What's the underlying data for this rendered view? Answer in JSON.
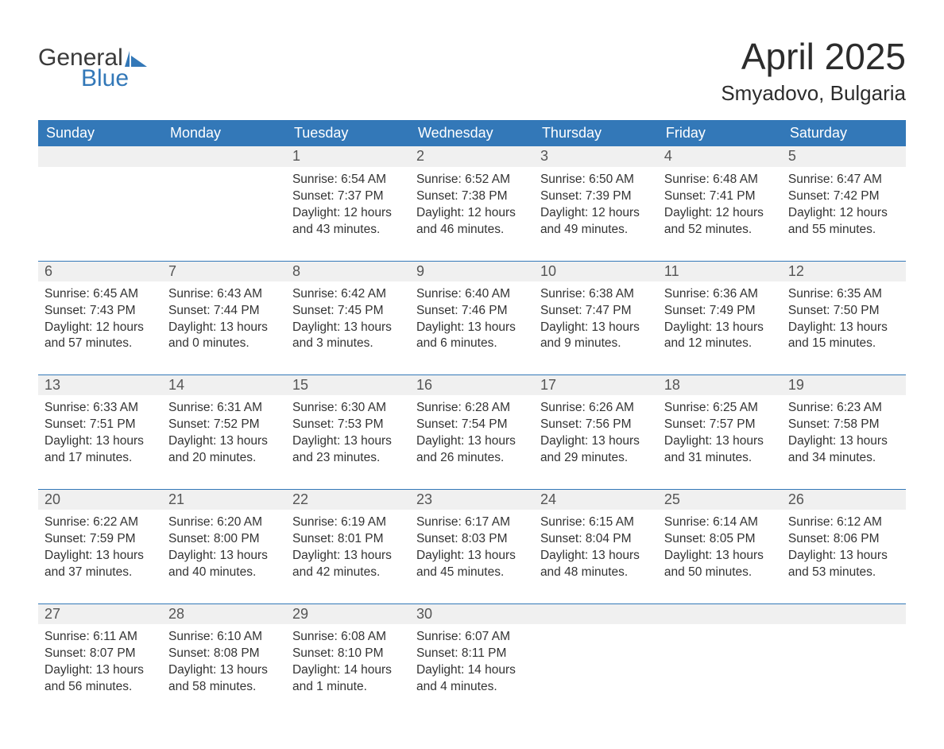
{
  "logo": {
    "word1": "General",
    "word2": "Blue",
    "flag_color": "#3378b8"
  },
  "title": "April 2025",
  "location": "Smyadovo, Bulgaria",
  "day_headers": [
    "Sunday",
    "Monday",
    "Tuesday",
    "Wednesday",
    "Thursday",
    "Friday",
    "Saturday"
  ],
  "colors": {
    "header_bg": "#3378b8",
    "header_text": "#ffffff",
    "strip_bg": "#f0f0f0",
    "body_text": "#333333",
    "daynum_text": "#555555",
    "page_bg": "#ffffff"
  },
  "weeks": [
    [
      null,
      null,
      {
        "n": "1",
        "sunrise": "Sunrise: 6:54 AM",
        "sunset": "Sunset: 7:37 PM",
        "d1": "Daylight: 12 hours",
        "d2": "and 43 minutes."
      },
      {
        "n": "2",
        "sunrise": "Sunrise: 6:52 AM",
        "sunset": "Sunset: 7:38 PM",
        "d1": "Daylight: 12 hours",
        "d2": "and 46 minutes."
      },
      {
        "n": "3",
        "sunrise": "Sunrise: 6:50 AM",
        "sunset": "Sunset: 7:39 PM",
        "d1": "Daylight: 12 hours",
        "d2": "and 49 minutes."
      },
      {
        "n": "4",
        "sunrise": "Sunrise: 6:48 AM",
        "sunset": "Sunset: 7:41 PM",
        "d1": "Daylight: 12 hours",
        "d2": "and 52 minutes."
      },
      {
        "n": "5",
        "sunrise": "Sunrise: 6:47 AM",
        "sunset": "Sunset: 7:42 PM",
        "d1": "Daylight: 12 hours",
        "d2": "and 55 minutes."
      }
    ],
    [
      {
        "n": "6",
        "sunrise": "Sunrise: 6:45 AM",
        "sunset": "Sunset: 7:43 PM",
        "d1": "Daylight: 12 hours",
        "d2": "and 57 minutes."
      },
      {
        "n": "7",
        "sunrise": "Sunrise: 6:43 AM",
        "sunset": "Sunset: 7:44 PM",
        "d1": "Daylight: 13 hours",
        "d2": "and 0 minutes."
      },
      {
        "n": "8",
        "sunrise": "Sunrise: 6:42 AM",
        "sunset": "Sunset: 7:45 PM",
        "d1": "Daylight: 13 hours",
        "d2": "and 3 minutes."
      },
      {
        "n": "9",
        "sunrise": "Sunrise: 6:40 AM",
        "sunset": "Sunset: 7:46 PM",
        "d1": "Daylight: 13 hours",
        "d2": "and 6 minutes."
      },
      {
        "n": "10",
        "sunrise": "Sunrise: 6:38 AM",
        "sunset": "Sunset: 7:47 PM",
        "d1": "Daylight: 13 hours",
        "d2": "and 9 minutes."
      },
      {
        "n": "11",
        "sunrise": "Sunrise: 6:36 AM",
        "sunset": "Sunset: 7:49 PM",
        "d1": "Daylight: 13 hours",
        "d2": "and 12 minutes."
      },
      {
        "n": "12",
        "sunrise": "Sunrise: 6:35 AM",
        "sunset": "Sunset: 7:50 PM",
        "d1": "Daylight: 13 hours",
        "d2": "and 15 minutes."
      }
    ],
    [
      {
        "n": "13",
        "sunrise": "Sunrise: 6:33 AM",
        "sunset": "Sunset: 7:51 PM",
        "d1": "Daylight: 13 hours",
        "d2": "and 17 minutes."
      },
      {
        "n": "14",
        "sunrise": "Sunrise: 6:31 AM",
        "sunset": "Sunset: 7:52 PM",
        "d1": "Daylight: 13 hours",
        "d2": "and 20 minutes."
      },
      {
        "n": "15",
        "sunrise": "Sunrise: 6:30 AM",
        "sunset": "Sunset: 7:53 PM",
        "d1": "Daylight: 13 hours",
        "d2": "and 23 minutes."
      },
      {
        "n": "16",
        "sunrise": "Sunrise: 6:28 AM",
        "sunset": "Sunset: 7:54 PM",
        "d1": "Daylight: 13 hours",
        "d2": "and 26 minutes."
      },
      {
        "n": "17",
        "sunrise": "Sunrise: 6:26 AM",
        "sunset": "Sunset: 7:56 PM",
        "d1": "Daylight: 13 hours",
        "d2": "and 29 minutes."
      },
      {
        "n": "18",
        "sunrise": "Sunrise: 6:25 AM",
        "sunset": "Sunset: 7:57 PM",
        "d1": "Daylight: 13 hours",
        "d2": "and 31 minutes."
      },
      {
        "n": "19",
        "sunrise": "Sunrise: 6:23 AM",
        "sunset": "Sunset: 7:58 PM",
        "d1": "Daylight: 13 hours",
        "d2": "and 34 minutes."
      }
    ],
    [
      {
        "n": "20",
        "sunrise": "Sunrise: 6:22 AM",
        "sunset": "Sunset: 7:59 PM",
        "d1": "Daylight: 13 hours",
        "d2": "and 37 minutes."
      },
      {
        "n": "21",
        "sunrise": "Sunrise: 6:20 AM",
        "sunset": "Sunset: 8:00 PM",
        "d1": "Daylight: 13 hours",
        "d2": "and 40 minutes."
      },
      {
        "n": "22",
        "sunrise": "Sunrise: 6:19 AM",
        "sunset": "Sunset: 8:01 PM",
        "d1": "Daylight: 13 hours",
        "d2": "and 42 minutes."
      },
      {
        "n": "23",
        "sunrise": "Sunrise: 6:17 AM",
        "sunset": "Sunset: 8:03 PM",
        "d1": "Daylight: 13 hours",
        "d2": "and 45 minutes."
      },
      {
        "n": "24",
        "sunrise": "Sunrise: 6:15 AM",
        "sunset": "Sunset: 8:04 PM",
        "d1": "Daylight: 13 hours",
        "d2": "and 48 minutes."
      },
      {
        "n": "25",
        "sunrise": "Sunrise: 6:14 AM",
        "sunset": "Sunset: 8:05 PM",
        "d1": "Daylight: 13 hours",
        "d2": "and 50 minutes."
      },
      {
        "n": "26",
        "sunrise": "Sunrise: 6:12 AM",
        "sunset": "Sunset: 8:06 PM",
        "d1": "Daylight: 13 hours",
        "d2": "and 53 minutes."
      }
    ],
    [
      {
        "n": "27",
        "sunrise": "Sunrise: 6:11 AM",
        "sunset": "Sunset: 8:07 PM",
        "d1": "Daylight: 13 hours",
        "d2": "and 56 minutes."
      },
      {
        "n": "28",
        "sunrise": "Sunrise: 6:10 AM",
        "sunset": "Sunset: 8:08 PM",
        "d1": "Daylight: 13 hours",
        "d2": "and 58 minutes."
      },
      {
        "n": "29",
        "sunrise": "Sunrise: 6:08 AM",
        "sunset": "Sunset: 8:10 PM",
        "d1": "Daylight: 14 hours",
        "d2": "and 1 minute."
      },
      {
        "n": "30",
        "sunrise": "Sunrise: 6:07 AM",
        "sunset": "Sunset: 8:11 PM",
        "d1": "Daylight: 14 hours",
        "d2": "and 4 minutes."
      },
      null,
      null,
      null
    ]
  ]
}
